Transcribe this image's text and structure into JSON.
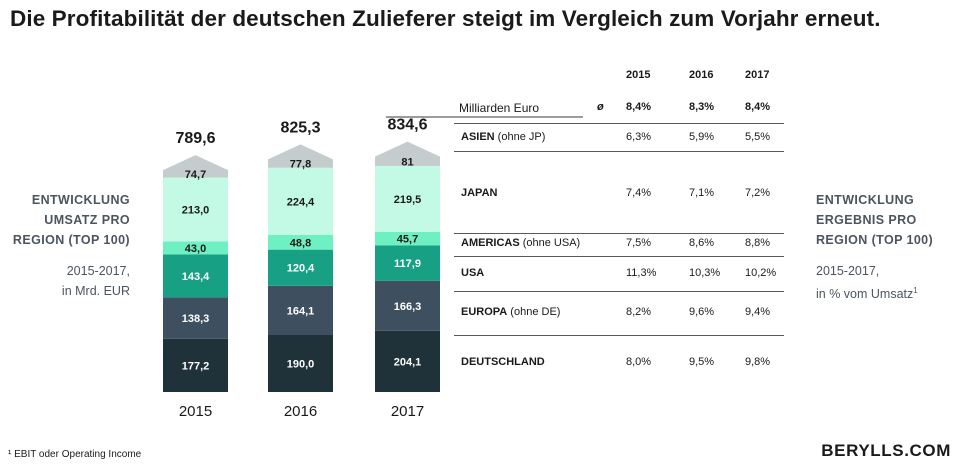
{
  "title": "Die Profitabilität der deutschen Zulieferer steigt im Vergleich zum Vorjahr erneut.",
  "left_panel": {
    "heading": [
      "ENTWICKLUNG",
      "UMSATZ PRO",
      "REGION (TOP 100)"
    ],
    "subtitle": [
      "2015-2017,",
      "in Mrd. EUR"
    ]
  },
  "right_panel": {
    "heading": [
      "ENTWICKLUNG",
      "ERGEBNIS PRO",
      "REGION (TOP 100)"
    ],
    "subtitle": [
      "2015-2017,",
      "in % vom Umsatz"
    ],
    "subtitle_sup": "1"
  },
  "chart_data": {
    "type": "bar",
    "stacked": true,
    "unit": "Milliarden Euro",
    "categories": [
      "2015",
      "2016",
      "2017"
    ],
    "totals": [
      "789,6",
      "825,3",
      "834,6"
    ],
    "series": [
      {
        "name": "DEUTSCHLAND",
        "values": [
          177.2,
          190.0,
          204.1
        ],
        "labels": [
          "177,2",
          "190,0",
          "204,1"
        ],
        "color": "#1f3139",
        "text_color": "#ffffff"
      },
      {
        "name": "EUROPA (ohne DE)",
        "values": [
          138.3,
          164.1,
          166.3
        ],
        "labels": [
          "138,3",
          "164,1",
          "166,3"
        ],
        "color": "#3e5060",
        "text_color": "#ffffff"
      },
      {
        "name": "USA",
        "values": [
          143.4,
          120.4,
          117.9
        ],
        "labels": [
          "143,4",
          "120,4",
          "117,9"
        ],
        "color": "#17a084",
        "text_color": "#ffffff"
      },
      {
        "name": "AMERICAS (ohne USA)",
        "values": [
          43.0,
          48.8,
          45.7
        ],
        "labels": [
          "43,0",
          "48,8",
          "45,7"
        ],
        "color": "#6ff0c2",
        "text_color": "#1a1a1a"
      },
      {
        "name": "JAPAN",
        "values": [
          213.0,
          224.4,
          219.5
        ],
        "labels": [
          "213,0",
          "224,4",
          "219,5"
        ],
        "color": "#c3fae6",
        "text_color": "#1a1a1a"
      },
      {
        "name": "ASIEN (ohne JP)",
        "values": [
          74.7,
          77.8,
          81
        ],
        "labels": [
          "74,7",
          "77,8",
          "81"
        ],
        "color": "#c5cccd",
        "text_color": "#1a1a1a"
      }
    ]
  },
  "table": {
    "years": [
      "2015",
      "2016",
      "2017"
    ],
    "avg_symbol": "ø",
    "avg_row": [
      "8,4%",
      "8,3%",
      "8,4%"
    ],
    "rows": [
      {
        "region": "ASIEN",
        "sub": "(ohne JP)",
        "values": [
          "6,3%",
          "5,9%",
          "5,5%"
        ]
      },
      {
        "region": "JAPAN",
        "sub": "",
        "values": [
          "7,4%",
          "7,1%",
          "7,2%"
        ]
      },
      {
        "region": "AMERICAS",
        "sub": "(ohne USA)",
        "values": [
          "7,5%",
          "8,6%",
          "8,8%"
        ]
      },
      {
        "region": "USA",
        "sub": "",
        "values": [
          "11,3%",
          "10,3%",
          "10,2%"
        ]
      },
      {
        "region": "EUROPA",
        "sub": "(ohne DE)",
        "values": [
          "8,2%",
          "9,6%",
          "9,4%"
        ]
      },
      {
        "region": "DEUTSCHLAND",
        "sub": "",
        "values": [
          "8,0%",
          "9,5%",
          "9,8%"
        ]
      }
    ]
  },
  "footnote": "¹ EBIT oder Operating Income",
  "logo": "BERYLLS.COM"
}
